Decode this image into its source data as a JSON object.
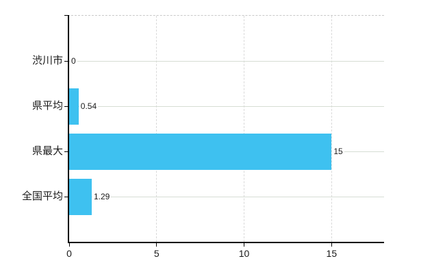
{
  "chart_data": {
    "type": "bar",
    "orientation": "horizontal",
    "title": "",
    "categories": [
      "渋川市",
      "県平均",
      "県最大",
      "全国平均"
    ],
    "values": [
      0,
      0.54,
      15,
      1.29
    ],
    "value_labels": [
      "0",
      "0.54",
      "15",
      "1.29"
    ],
    "xlim": [
      0,
      18
    ],
    "x_ticks": [
      0,
      5,
      10,
      15
    ],
    "x_tick_labels": [
      "0",
      "5",
      "10",
      "15"
    ],
    "grid": true,
    "legend_position": "none"
  },
  "colors": {
    "bar": "#3ec1f0",
    "h_gridline": "#d6ddd4",
    "v_gridline": "#d9d9d9",
    "top_border": "#c9c9c9",
    "axis": "#000000",
    "text": "#1a1a1a",
    "background": "#ffffff"
  }
}
